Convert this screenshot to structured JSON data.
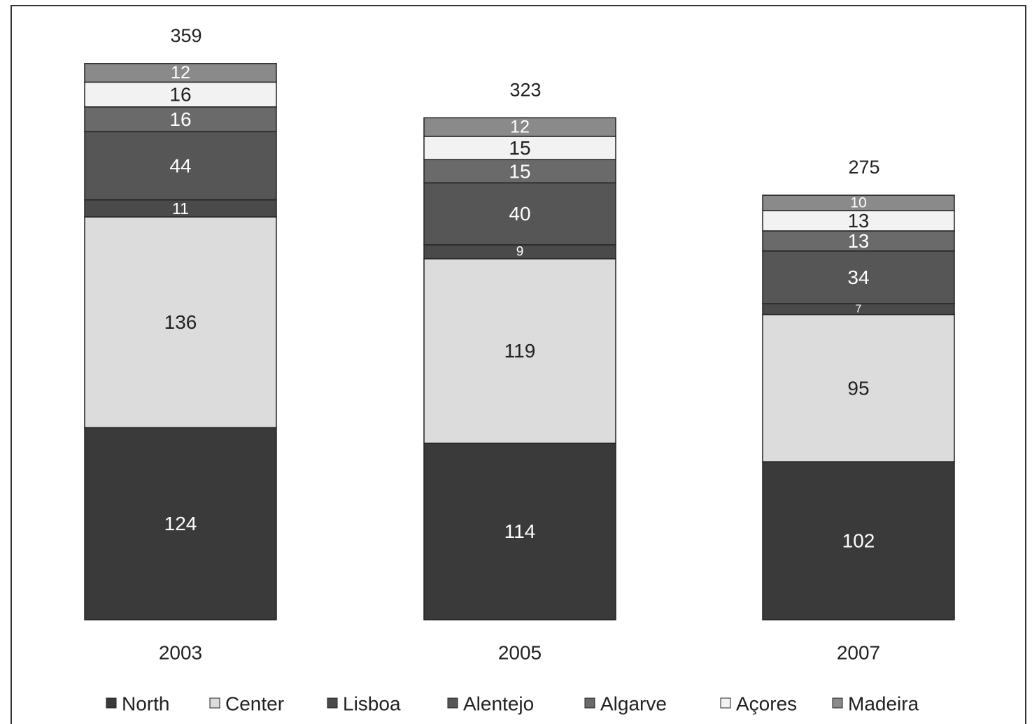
{
  "chart_data": {
    "type": "bar",
    "stacked": true,
    "categories": [
      "2003",
      "2005",
      "2007"
    ],
    "totals": [
      359,
      323,
      275
    ],
    "series": [
      {
        "name": "North",
        "values": [
          124,
          114,
          102
        ],
        "color": "#3a3a3a"
      },
      {
        "name": "Center",
        "values": [
          136,
          119,
          95
        ],
        "color": "#dcdcdc"
      },
      {
        "name": "Lisboa",
        "values": [
          11,
          9,
          7
        ],
        "color": "#4a4a4a"
      },
      {
        "name": "Alentejo",
        "values": [
          44,
          40,
          34
        ],
        "color": "#565656"
      },
      {
        "name": "Algarve",
        "values": [
          16,
          15,
          13
        ],
        "color": "#6a6a6a"
      },
      {
        "name": "Açores",
        "values": [
          16,
          15,
          13
        ],
        "color": "#f2f2f2"
      },
      {
        "name": "Madeira",
        "values": [
          12,
          12,
          10
        ],
        "color": "#8a8a8a"
      }
    ],
    "legend_position": "bottom",
    "grid": false
  }
}
